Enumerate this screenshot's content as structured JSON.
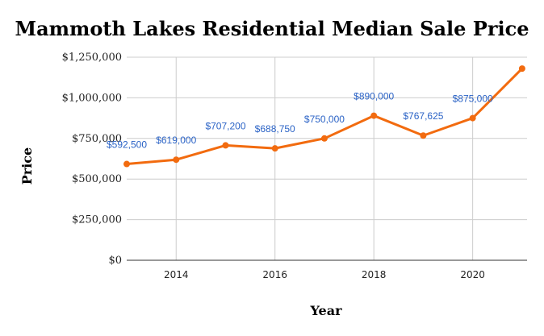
{
  "chart_data": {
    "type": "line",
    "title": "Mammoth Lakes Residential Median Sale Price",
    "xlabel": "Year",
    "ylabel": "Price",
    "x": [
      2013,
      2014,
      2015,
      2016,
      2017,
      2018,
      2019,
      2020,
      2021
    ],
    "series": [
      {
        "values": [
          592500,
          619000,
          707200,
          688750,
          750000,
          890000,
          767625,
          875000,
          1180000
        ],
        "data_labels": [
          "$592,500",
          "$619,000",
          "$707,200",
          "$688,750",
          "$750,000",
          "$890,000",
          "$767,625",
          "$875,000",
          ""
        ]
      }
    ],
    "xticks": [
      2014,
      2016,
      2018,
      2020
    ],
    "xtick_labels": [
      "2014",
      "2016",
      "2018",
      "2020"
    ],
    "yticks": [
      0,
      250000,
      500000,
      750000,
      1000000,
      1250000
    ],
    "ytick_labels": [
      "$0",
      "$250,000",
      "$500,000",
      "$750,000",
      "$1,000,000",
      "$1,250,000"
    ],
    "xlim": [
      2013,
      2021.1
    ],
    "ylim": [
      0,
      1250000
    ],
    "grid": true,
    "legend": "none",
    "colors": {
      "line": "#f26b0f",
      "data_label": "#2b63c6",
      "grid": "#cccccc",
      "axis": "#333333"
    }
  }
}
